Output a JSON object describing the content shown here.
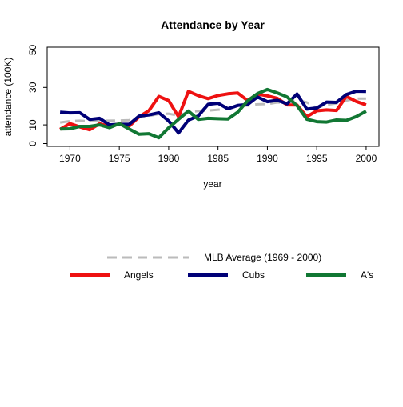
{
  "chart_data": {
    "type": "line",
    "title": "Attendance by Year",
    "xlabel": "year",
    "ylabel": "attendance (100K)",
    "xlim": [
      1967.7,
      2001.3
    ],
    "ylim": [
      -1.5,
      51.5
    ],
    "xticks": [
      1970,
      1975,
      1980,
      1985,
      1990,
      1995,
      2000
    ],
    "yticks": [
      0,
      10,
      30,
      50
    ],
    "grid": false,
    "legend_position": "bottom",
    "x": [
      1969,
      1970,
      1971,
      1972,
      1973,
      1974,
      1975,
      1976,
      1977,
      1978,
      1979,
      1980,
      1981,
      1982,
      1983,
      1984,
      1985,
      1986,
      1987,
      1988,
      1989,
      1990,
      1991,
      1992,
      1993,
      1994,
      1995,
      1996,
      1997,
      1998,
      1999,
      2000
    ],
    "series": [
      {
        "name": "Angels",
        "color": "#ee1111",
        "dash": "solid",
        "values": [
          7.6,
          10.7,
          8.9,
          7.4,
          10.6,
          9.2,
          10.6,
          9.3,
          14.3,
          17.6,
          25.2,
          23.0,
          14.3,
          27.9,
          25.6,
          24.0,
          25.7,
          26.6,
          27.0,
          23.0,
          26.5,
          25.5,
          24.2,
          20.7,
          20.6,
          14.4,
          17.5,
          18.0,
          17.7,
          25.2,
          22.5,
          20.7
        ]
      },
      {
        "name": "Cubs",
        "color": "#000077",
        "dash": "solid",
        "values": [
          16.8,
          16.4,
          16.5,
          12.9,
          13.5,
          10.0,
          10.3,
          10.3,
          14.7,
          15.3,
          16.5,
          12.1,
          5.7,
          12.5,
          14.8,
          21.0,
          21.6,
          18.6,
          20.4,
          20.9,
          24.9,
          22.4,
          23.1,
          21.3,
          26.5,
          18.4,
          19.0,
          22.2,
          22.0,
          26.2,
          28.0,
          27.9
        ]
      },
      {
        "name": "A's",
        "color": "#117733",
        "dash": "solid",
        "values": [
          7.8,
          7.9,
          9.2,
          9.2,
          10.0,
          8.5,
          10.7,
          7.8,
          5.0,
          5.3,
          3.1,
          8.4,
          13.0,
          17.4,
          12.9,
          13.5,
          13.3,
          13.1,
          16.8,
          22.8,
          26.7,
          28.9,
          27.1,
          24.9,
          20.3,
          13.0,
          11.7,
          11.5,
          12.6,
          12.4,
          14.4,
          17.3
        ]
      },
      {
        "name": "MLB Average (1969 - 2000)",
        "color": "#bbbbbb",
        "dash": "dashed",
        "values": [
          11.3,
          12.0,
          12.2,
          11.9,
          12.3,
          12.2,
          12.3,
          12.5,
          14.2,
          14.8,
          15.8,
          16.0,
          14.9,
          16.8,
          17.4,
          17.6,
          18.1,
          18.5,
          20.1,
          20.3,
          21.0,
          21.1,
          22.0,
          21.6,
          23.4,
          22.0,
          19.0,
          20.8,
          21.5,
          23.0,
          24.0,
          24.0
        ]
      }
    ]
  }
}
